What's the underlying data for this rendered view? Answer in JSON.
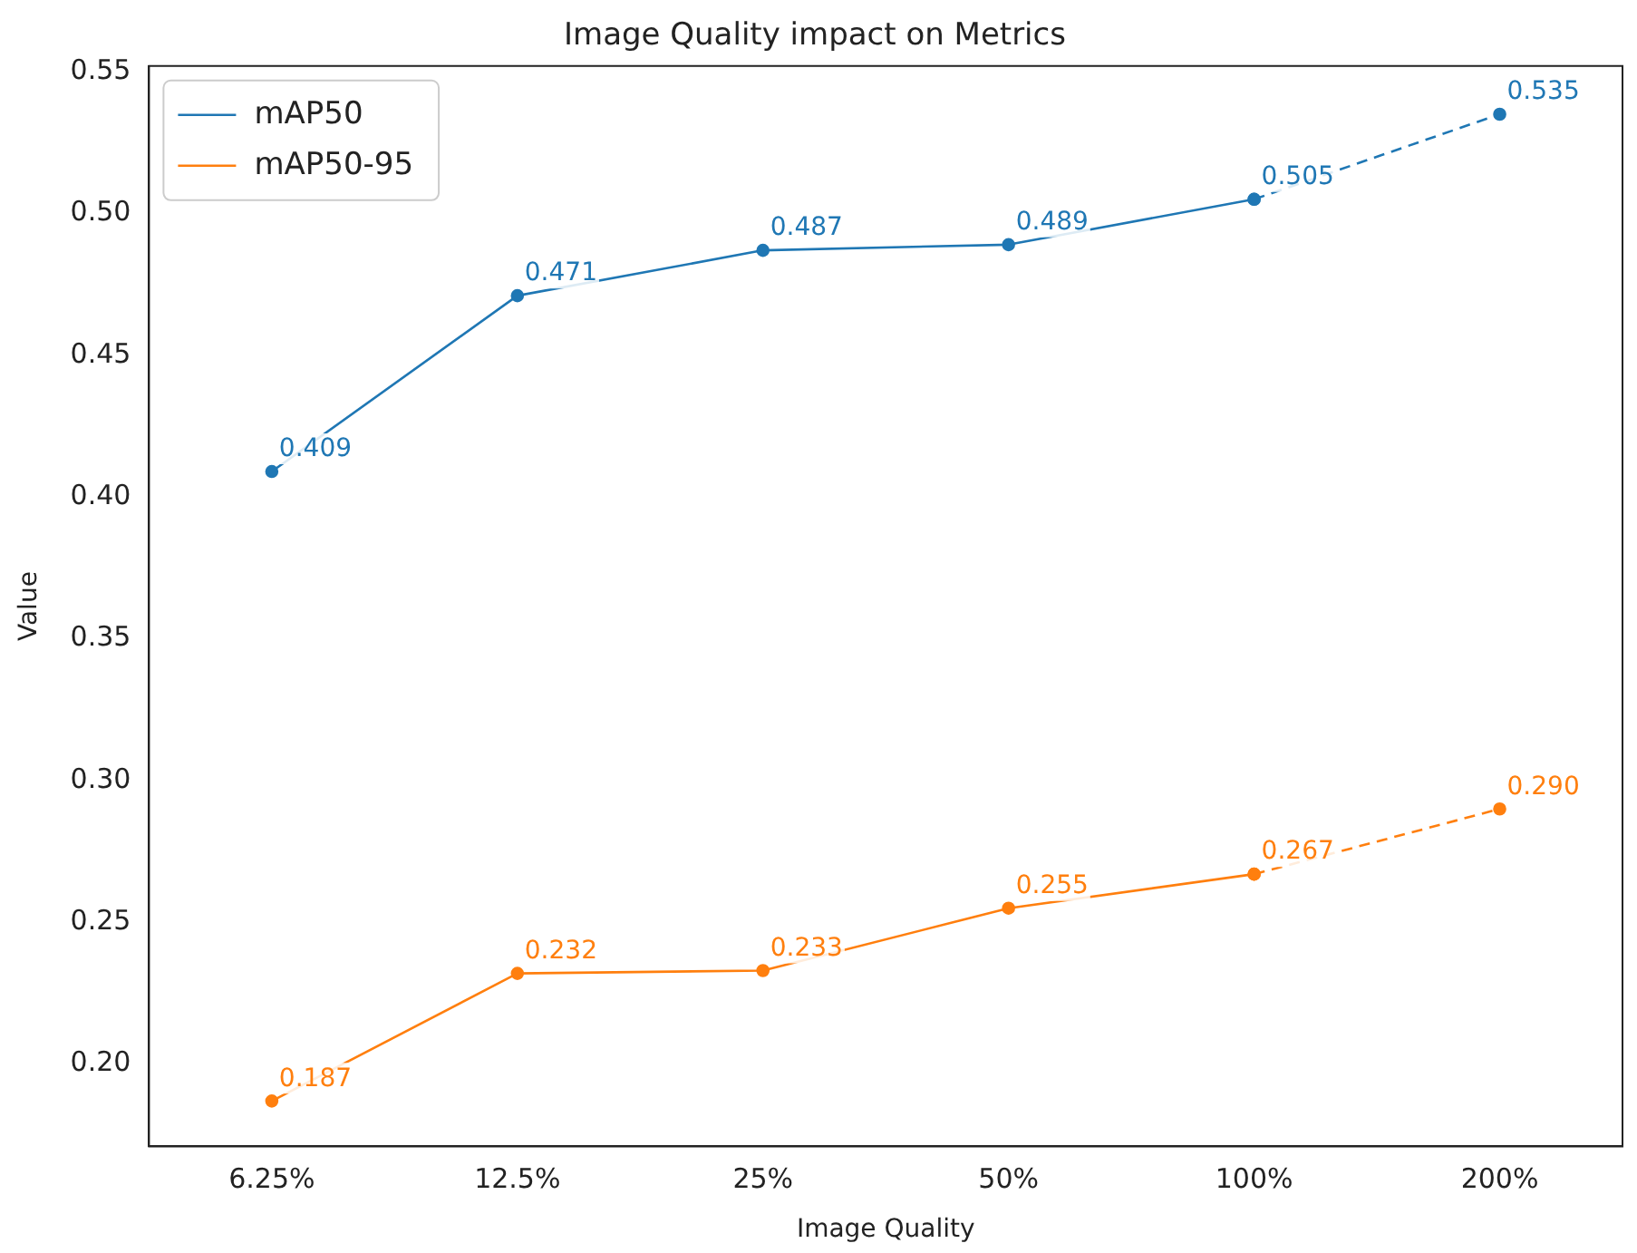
{
  "chart_data": {
    "type": "line",
    "title": "Image Quality impact on Metrics",
    "xlabel": "Image Quality",
    "ylabel": "Value",
    "categories": [
      "6.25%",
      "12.5%",
      "25%",
      "50%",
      "100%",
      "200%"
    ],
    "series": [
      {
        "name": "mAP50",
        "color": "#1f77b4",
        "values": [
          0.409,
          0.471,
          0.487,
          0.489,
          0.505,
          null
        ],
        "value_labels": [
          "0.409",
          "0.471",
          "0.487",
          "0.489",
          "0.505",
          null
        ]
      },
      {
        "name": "mAP50-95",
        "color": "#ff7f0e",
        "values": [
          0.187,
          0.232,
          0.233,
          0.255,
          0.267,
          null
        ],
        "value_labels": [
          "0.187",
          "0.232",
          "0.233",
          "0.255",
          "0.267",
          null
        ]
      },
      {
        "color": "#1f77b4",
        "line_style": "dashed",
        "values": [
          null,
          null,
          null,
          null,
          0.505,
          0.535
        ],
        "value_labels": [
          null,
          null,
          null,
          null,
          null,
          "0.535"
        ]
      },
      {
        "color": "#ff7f0e",
        "line_style": "dashed",
        "values": [
          null,
          null,
          null,
          null,
          0.267,
          0.29
        ],
        "value_labels": [
          null,
          null,
          null,
          null,
          null,
          "0.290"
        ]
      }
    ],
    "ylim": [
      0.171,
      0.552
    ],
    "yticks": [
      {
        "value": 0.2,
        "label": "0.20"
      },
      {
        "value": 0.25,
        "label": "0.25"
      },
      {
        "value": 0.3,
        "label": "0.30"
      },
      {
        "value": 0.35,
        "label": "0.35"
      },
      {
        "value": 0.4,
        "label": "0.40"
      },
      {
        "value": 0.45,
        "label": "0.45"
      },
      {
        "value": 0.5,
        "label": "0.50"
      },
      {
        "value": 0.55,
        "label": "0.55"
      }
    ],
    "grid": false,
    "legend": "top left",
    "marker": "circle",
    "line_style": "solid"
  }
}
